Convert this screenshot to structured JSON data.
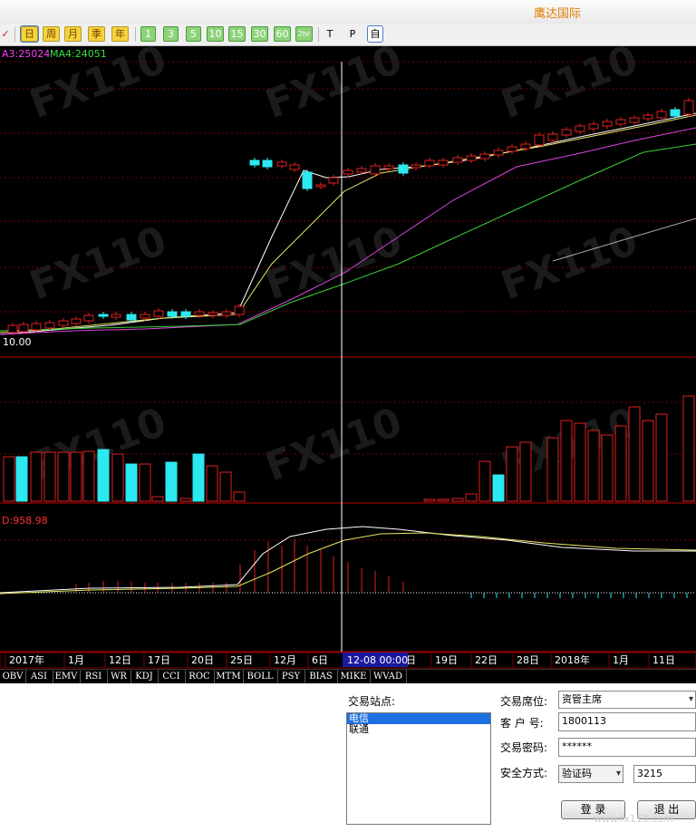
{
  "app": {
    "title": "鹰达国际"
  },
  "toolbar": {
    "periods": [
      "日",
      "周",
      "月",
      "季",
      "年"
    ],
    "minutes": [
      "1",
      "3",
      "5",
      "10",
      "15",
      "30",
      "60",
      "2hr"
    ],
    "plain": [
      "T",
      "P",
      "自"
    ]
  },
  "chart": {
    "ma_labels": [
      {
        "text": "A3:25024",
        "color": "#ff3cff"
      },
      {
        "text": "MA4:24051",
        "color": "#39e139"
      }
    ],
    "price_label": "10.00",
    "macd_label": "D:958.98",
    "cursor_label": "12-08 00:00",
    "x_labels": [
      "2017年",
      "1月",
      "12日",
      "17日",
      "20日",
      "25日",
      "12月",
      "6日",
      "日",
      "19日",
      "22日",
      "28日",
      "2018年",
      "1月",
      "11日"
    ],
    "colors": {
      "up": "#e02020",
      "down": "#2ce8f0",
      "grid": "#7a0000",
      "ma1": "#ffffff",
      "ma2": "#e8e860",
      "ma3": "#e040e0",
      "ma4": "#39d039",
      "cursor": "#ffffff"
    }
  },
  "indicator_tabs": [
    "OBV",
    "ASI",
    "EMV",
    "RSI",
    "WR",
    "KDJ",
    "CCI",
    "ROC",
    "MTM",
    "BOLL",
    "PSY",
    "BIAS",
    "MIKE",
    "WVAD"
  ],
  "login": {
    "station_label": "交易站点:",
    "stations": [
      "电信",
      "联通"
    ],
    "seat_label": "交易席位:",
    "seat_value": "资管主席",
    "account_label": "客 户 号:",
    "account_value": "1800113",
    "password_label": "交易密码:",
    "password_value": "******",
    "security_label": "安全方式:",
    "security_method": "验证码",
    "code_value": "3215",
    "login_button": "登 录",
    "exit_button": "退 出"
  },
  "watermark": "www.fx110.com"
}
